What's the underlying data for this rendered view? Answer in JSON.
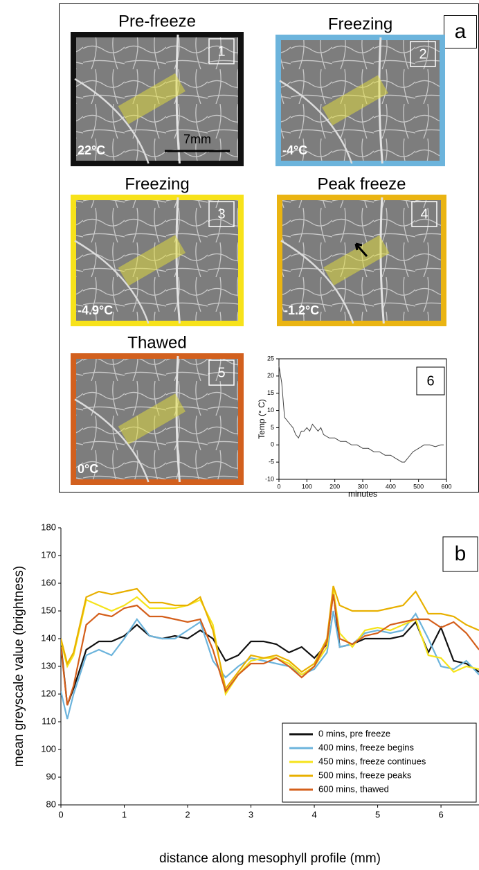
{
  "figure": {
    "label": "a",
    "scale_bar": "7mm",
    "panels": [
      {
        "title": "Pre-freeze",
        "number": "1",
        "temperature": "22°C",
        "border": "#111111"
      },
      {
        "title": "Freezing",
        "number": "2",
        "temperature": "-4°C",
        "border": "#6cb4dc"
      },
      {
        "title": "Freezing",
        "number": "3",
        "temperature": "-4.9°C",
        "border": "#f7e21a"
      },
      {
        "title": "Peak freeze",
        "number": "4",
        "temperature": "-1.2°C",
        "border": "#eab412"
      },
      {
        "title": "Thawed",
        "number": "5",
        "temperature": "0°C",
        "border": "#d2601e"
      }
    ]
  },
  "chart_data": [
    {
      "type": "line",
      "panel_label": "6",
      "xlabel": "minutes",
      "ylabel": "Temp (° C)",
      "x": [
        0,
        10,
        20,
        30,
        40,
        50,
        60,
        70,
        80,
        90,
        100,
        110,
        120,
        130,
        140,
        150,
        160,
        180,
        200,
        220,
        240,
        260,
        280,
        300,
        320,
        340,
        360,
        380,
        400,
        420,
        440,
        450,
        460,
        480,
        500,
        520,
        540,
        560,
        580,
        590
      ],
      "values": [
        23,
        18,
        8,
        7,
        6,
        5,
        3,
        2,
        4,
        4,
        5,
        4,
        6,
        5,
        4,
        5,
        3,
        2,
        2,
        1,
        1,
        0,
        0,
        -1,
        -1,
        -2,
        -2,
        -3,
        -3,
        -4,
        -5,
        -5,
        -4,
        -2,
        -1,
        0,
        0,
        -0.5,
        0,
        0
      ],
      "color": "#444444",
      "xlim": [
        0,
        600
      ],
      "ylim": [
        -10,
        25
      ],
      "xticks": [
        0,
        100,
        200,
        300,
        400,
        500,
        600
      ],
      "yticks": [
        -10,
        -5,
        0,
        5,
        10,
        15,
        20,
        25
      ]
    },
    {
      "type": "line",
      "panel_label": "b",
      "xlabel": "distance along mesophyll profile (mm)",
      "ylabel": "mean greyscale value (brightness)",
      "x": [
        0,
        0.1,
        0.2,
        0.4,
        0.6,
        0.8,
        1.0,
        1.2,
        1.4,
        1.6,
        1.8,
        2.0,
        2.2,
        2.4,
        2.6,
        2.8,
        3.0,
        3.2,
        3.4,
        3.6,
        3.8,
        4.0,
        4.2,
        4.3,
        4.4,
        4.6,
        4.8,
        5.0,
        5.2,
        5.4,
        5.6,
        5.8,
        6.0,
        6.2,
        6.4,
        6.6
      ],
      "series": [
        {
          "name": "0 mins, pre freeze",
          "color": "#111111",
          "values": [
            138,
            116,
            122,
            136,
            139,
            139,
            141,
            145,
            141,
            140,
            141,
            140,
            143,
            140,
            132,
            134,
            139,
            139,
            138,
            135,
            137,
            133,
            138,
            157,
            137,
            138,
            140,
            140,
            140,
            141,
            146,
            135,
            144,
            132,
            131,
            128
          ]
        },
        {
          "name": "400 mins, freeze begins",
          "color": "#6cb4dc",
          "values": [
            121,
            111,
            120,
            134,
            136,
            134,
            140,
            147,
            141,
            140,
            140,
            143,
            146,
            132,
            126,
            130,
            133,
            132,
            131,
            130,
            127,
            129,
            135,
            150,
            137,
            138,
            142,
            143,
            142,
            143,
            149,
            140,
            130,
            129,
            132,
            127
          ]
        },
        {
          "name": "450 mins, freeze continues",
          "color": "#f5e31a",
          "values": [
            139,
            130,
            134,
            154,
            152,
            150,
            152,
            155,
            151,
            151,
            151,
            152,
            154,
            145,
            120,
            127,
            132,
            133,
            133,
            131,
            127,
            130,
            137,
            158,
            142,
            137,
            143,
            144,
            143,
            145,
            147,
            134,
            133,
            128,
            130,
            129
          ]
        },
        {
          "name": "500 mins, freeze peaks",
          "color": "#e8b000",
          "values": [
            140,
            131,
            135,
            155,
            157,
            156,
            157,
            158,
            153,
            153,
            152,
            152,
            155,
            143,
            122,
            128,
            134,
            133,
            134,
            132,
            128,
            131,
            140,
            159,
            152,
            150,
            150,
            150,
            151,
            152,
            157,
            149,
            149,
            148,
            145,
            143
          ]
        },
        {
          "name": "600 mins, thawed",
          "color": "#d45f1b",
          "values": [
            137,
            116,
            123,
            145,
            149,
            148,
            151,
            152,
            148,
            148,
            147,
            146,
            147,
            136,
            121,
            127,
            131,
            131,
            133,
            130,
            126,
            130,
            139,
            156,
            140,
            138,
            141,
            142,
            145,
            146,
            147,
            147,
            144,
            146,
            142,
            136
          ]
        }
      ],
      "xlim": [
        0,
        6.6
      ],
      "ylim": [
        80,
        180
      ],
      "xticks": [
        0,
        1,
        2,
        3,
        4,
        5,
        6
      ],
      "yticks": [
        80,
        90,
        100,
        110,
        120,
        130,
        140,
        150,
        160,
        170,
        180
      ],
      "legend": "lower right"
    }
  ]
}
